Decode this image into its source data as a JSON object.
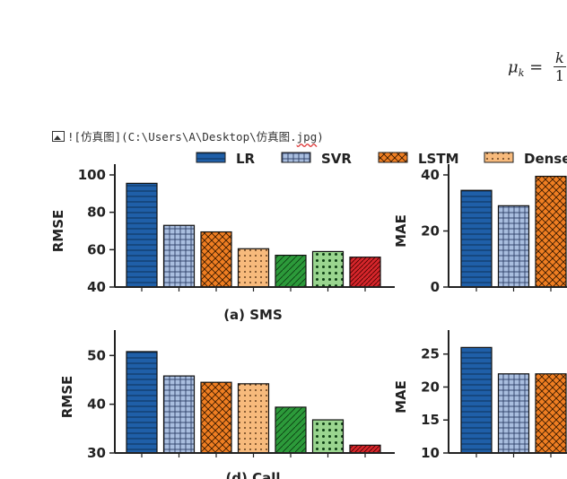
{
  "formula": {
    "lhs": "μ",
    "sub": "k",
    "eq": "=",
    "numerator": "k",
    "denominator": "1"
  },
  "markdown_line": {
    "prefix": "![",
    "alt_text": "仿真图",
    "middle": "](C:\\Users\\A\\Desktop\\仿真图.",
    "extension": "jpg",
    "suffix": ")"
  },
  "legend": [
    {
      "name": "LR",
      "color": "#1f5fa8",
      "pattern": "hlines"
    },
    {
      "name": "SVR",
      "color": "#a9bedf",
      "pattern": "grid"
    },
    {
      "name": "LSTM",
      "color": "#ef7e22",
      "pattern": "crosshatch"
    },
    {
      "name": "Dense",
      "color": "#f7ba7c",
      "pattern": "dots"
    }
  ],
  "chart_data": [
    {
      "type": "bar",
      "caption": "(a) SMS",
      "ylabel": "RMSE",
      "ylim": [
        40,
        100
      ],
      "yticks": [
        40,
        60,
        80,
        100
      ],
      "values": [
        95.5,
        73,
        69.5,
        60.5,
        57,
        59,
        56
      ]
    },
    {
      "type": "bar",
      "caption": "",
      "ylabel": "MAE",
      "ylim": [
        0,
        40
      ],
      "yticks": [
        0,
        20,
        40
      ],
      "values": [
        34.5,
        29,
        39.5
      ]
    },
    {
      "type": "bar",
      "caption": "(d) Call",
      "ylabel": "RMSE",
      "ylim": [
        30,
        53
      ],
      "yticks": [
        30,
        40,
        50
      ],
      "values": [
        50.8,
        45.8,
        44.5,
        44.2,
        39.4,
        36.8,
        31.6
      ]
    },
    {
      "type": "bar",
      "caption": "",
      "ylabel": "MAE",
      "ylim": [
        10,
        27
      ],
      "yticks": [
        10,
        15,
        20,
        25
      ],
      "values": [
        26,
        22,
        22
      ]
    }
  ]
}
